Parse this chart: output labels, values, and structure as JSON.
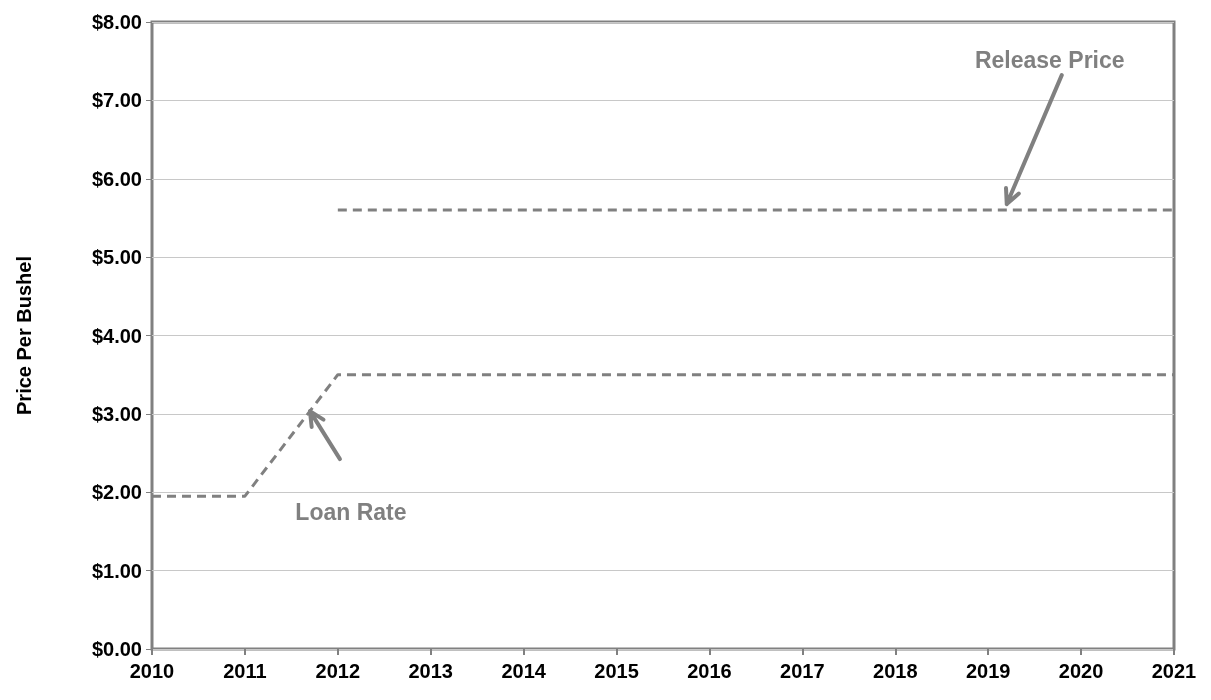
{
  "chart_data": {
    "type": "line",
    "ylabel": "Price Per Bushel",
    "xlim": [
      2010,
      2021
    ],
    "xticks": [
      2010,
      2011,
      2012,
      2013,
      2014,
      2015,
      2016,
      2017,
      2018,
      2019,
      2020,
      2021
    ],
    "ylim": [
      0,
      8
    ],
    "yticks": [
      {
        "value": 0,
        "label": "$0.00"
      },
      {
        "value": 1,
        "label": "$1.00"
      },
      {
        "value": 2,
        "label": "$2.00"
      },
      {
        "value": 3,
        "label": "$3.00"
      },
      {
        "value": 4,
        "label": "$4.00"
      },
      {
        "value": 5,
        "label": "$5.00"
      },
      {
        "value": 6,
        "label": "$6.00"
      },
      {
        "value": 7,
        "label": "$7.00"
      },
      {
        "value": 8,
        "label": "$8.00"
      }
    ],
    "grid": "y",
    "marker": "none",
    "line_style": "dashed",
    "series": [
      {
        "name": "Loan Rate",
        "color": "#808080",
        "x": [
          2010,
          2011,
          2012,
          2021
        ],
        "values": [
          1.95,
          1.95,
          3.5,
          3.5
        ]
      },
      {
        "name": "Release Price",
        "color": "#808080",
        "x": [
          2012,
          2021
        ],
        "values": [
          5.6,
          5.6
        ]
      }
    ]
  }
}
